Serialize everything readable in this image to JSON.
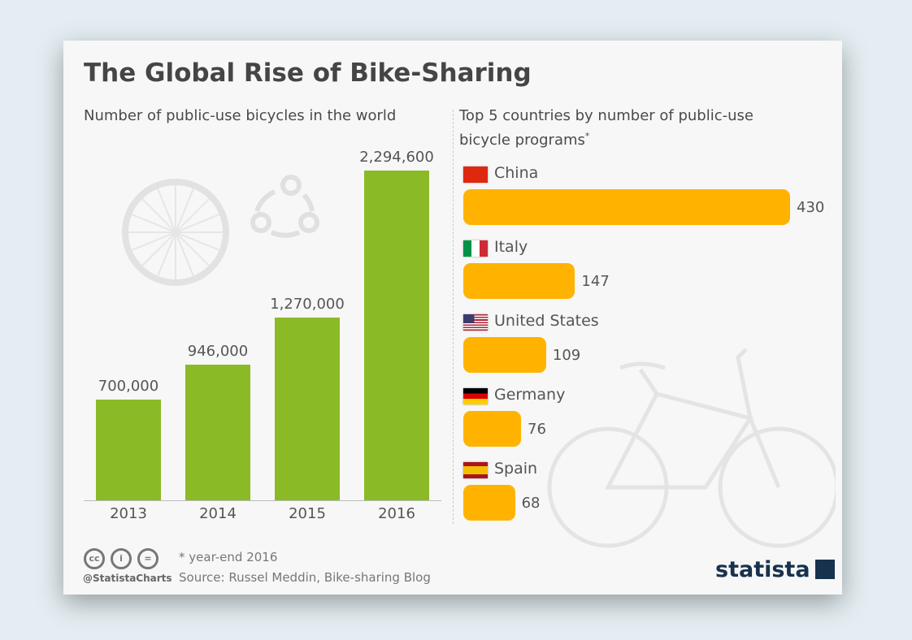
{
  "title": "The Global Rise of Bike-Sharing",
  "chart_data": [
    {
      "type": "bar",
      "title": "Number of public-use bicycles in the world",
      "categories": [
        "2013",
        "2014",
        "2015",
        "2016"
      ],
      "values": [
        700000,
        946000,
        1270000,
        2294600
      ],
      "value_labels": [
        "700,000",
        "946,000",
        "1,270,000",
        "2,294,600"
      ],
      "color": "#8aba26",
      "ylim": [
        0,
        2294600
      ],
      "grid": false
    },
    {
      "type": "bar",
      "orientation": "horizontal",
      "title": "Top 5 countries by number of public-use bicycle programs",
      "title_mark": "*",
      "categories": [
        "China",
        "Italy",
        "United States",
        "Germany",
        "Spain"
      ],
      "values": [
        430,
        147,
        109,
        76,
        68
      ],
      "color": "#ffb300",
      "grid": false
    }
  ],
  "footer": {
    "note": "* year-end 2016",
    "source": "Source: Russel Meddin, Bike-sharing Blog",
    "handle": "@StatistaCharts",
    "brand": "statista",
    "license_icons": [
      "cc-icon",
      "attribution-icon",
      "no-derivatives-icon"
    ]
  }
}
